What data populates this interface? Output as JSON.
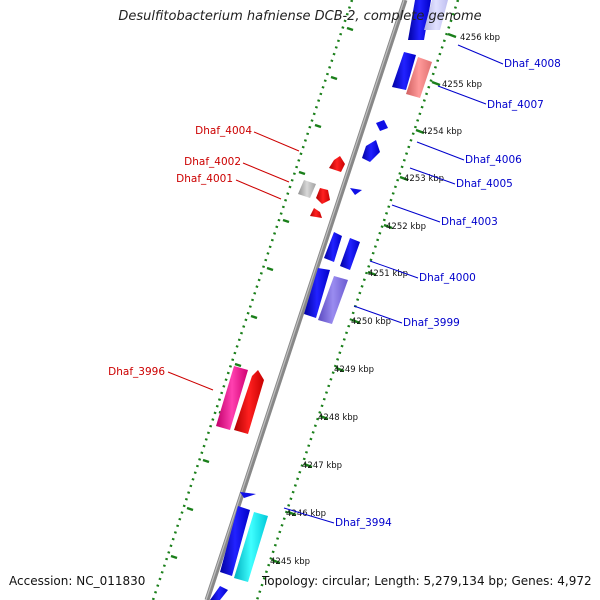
{
  "title": "Desulfitobacterium hafniense DCB-2, complete genome",
  "footer": {
    "accession": "Accession: NC_011830",
    "summary": "Topology: circular; Length: 5,279,134 bp; Genes: 4,972"
  },
  "colors": {
    "backbone": "#8a8a8a",
    "tick_ring": "#1a7f1a",
    "forward_gene": "#1010e6",
    "reverse_gene": "#e61010",
    "label_forward": "#0000cc",
    "label_reverse": "#cc0000"
  },
  "kbp_ticks": [
    "4256 kbp",
    "4255 kbp",
    "4254 kbp",
    "4253 kbp",
    "4252 kbp",
    "4251 kbp",
    "4250 kbp",
    "4249 kbp",
    "4248 kbp",
    "4247 kbp",
    "4246 kbp",
    "4245 kbp"
  ],
  "labels_right": [
    "Dhaf_4008",
    "Dhaf_4007",
    "Dhaf_4006",
    "Dhaf_4005",
    "Dhaf_4003",
    "Dhaf_4000",
    "Dhaf_3999",
    "Dhaf_3994"
  ],
  "labels_left": [
    "Dhaf_4004",
    "Dhaf_4002",
    "Dhaf_4001",
    "Dhaf_3996"
  ]
}
